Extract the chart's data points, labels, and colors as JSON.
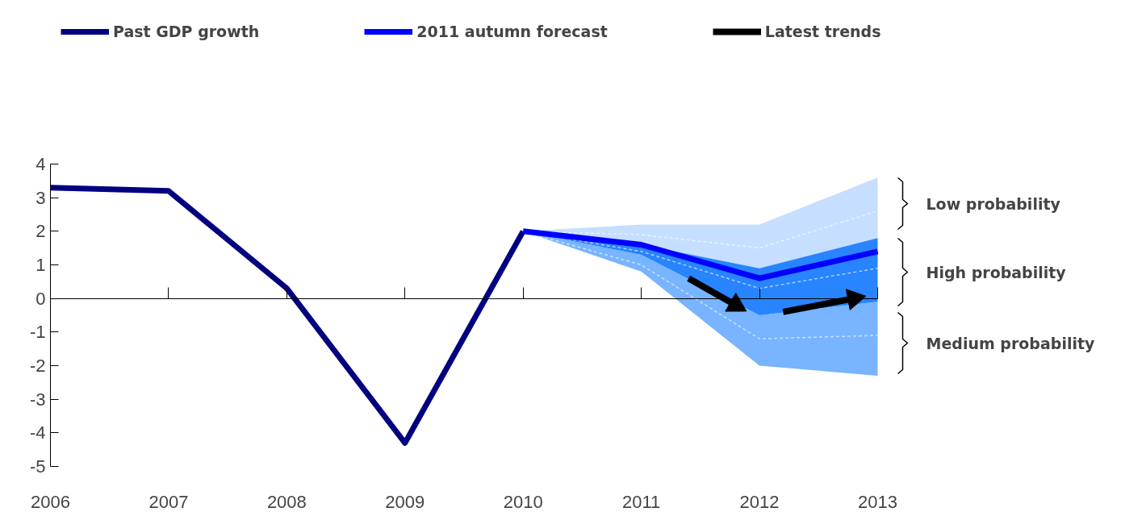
{
  "chart_data": {
    "type": "line",
    "series": [
      {
        "type": "line",
        "line_style": "dashed",
        "color": "#e8f2ff",
        "x": [
          2010,
          2011,
          2012,
          2013
        ],
        "values": [
          2.0,
          1.9,
          1.5,
          2.6
        ],
        "lower": [
          2.0,
          1.6,
          0.9,
          1.8
        ],
        "upper": [
          2.0,
          2.2,
          2.2,
          3.6
        ]
      },
      {
        "type": "line",
        "line_style": "dashed",
        "color": "#c9e1ff",
        "x": [
          2010,
          2011,
          2012,
          2013
        ],
        "values": [
          2.0,
          1.0,
          -1.2,
          -1.1
        ],
        "lower": [
          2.0,
          0.8,
          -2.0,
          -2.3
        ],
        "upper": [
          2.0,
          1.3,
          -0.5,
          -0.1
        ]
      },
      {
        "type": "line",
        "line_style": "dashed",
        "color": "#a9ceff",
        "x": [
          2010,
          2011,
          2012,
          2013
        ],
        "values": [
          2.0,
          1.4,
          0.3,
          0.9
        ],
        "lower": [
          2.0,
          1.3,
          -0.5,
          -0.1
        ],
        "upper": [
          2.0,
          1.6,
          0.9,
          1.8
        ]
      },
      {
        "type": "line",
        "name": "Past GDP growth",
        "color": "#000080",
        "x": [
          2006,
          2007,
          2008,
          2009,
          2010
        ],
        "values": [
          3.3,
          3.2,
          0.3,
          -4.3,
          2.0
        ]
      },
      {
        "type": "line",
        "name": "2011 autumn forecast",
        "color": "#0000ff",
        "x": [
          2010,
          2011,
          2012,
          2013
        ],
        "values": [
          2.0,
          1.6,
          0.6,
          1.4
        ]
      },
      {
        "type": "line",
        "marker": "triangle",
        "name": "Latest trends",
        "color": "#000000",
        "x": [
          2011.4,
          2011.8,
          null,
          2012.2,
          2012.8
        ],
        "values": [
          0.6,
          -0.2,
          null,
          -0.4,
          0.0
        ]
      }
    ],
    "xlim": [
      2006,
      2013
    ],
    "xticks": [
      2006,
      2007,
      2008,
      2009,
      2010,
      2011,
      2012,
      2013
    ],
    "ylim": [
      -5,
      4
    ],
    "yticks": [
      -5,
      -4,
      -3,
      -2,
      -1,
      0,
      1,
      2,
      3,
      4
    ],
    "grid": false,
    "legend": "top",
    "ref_lines": [
      {
        "axis": "y",
        "value": 0
      }
    ],
    "annotations": [
      "Low probability",
      "High probability",
      "Medium probability"
    ]
  }
}
